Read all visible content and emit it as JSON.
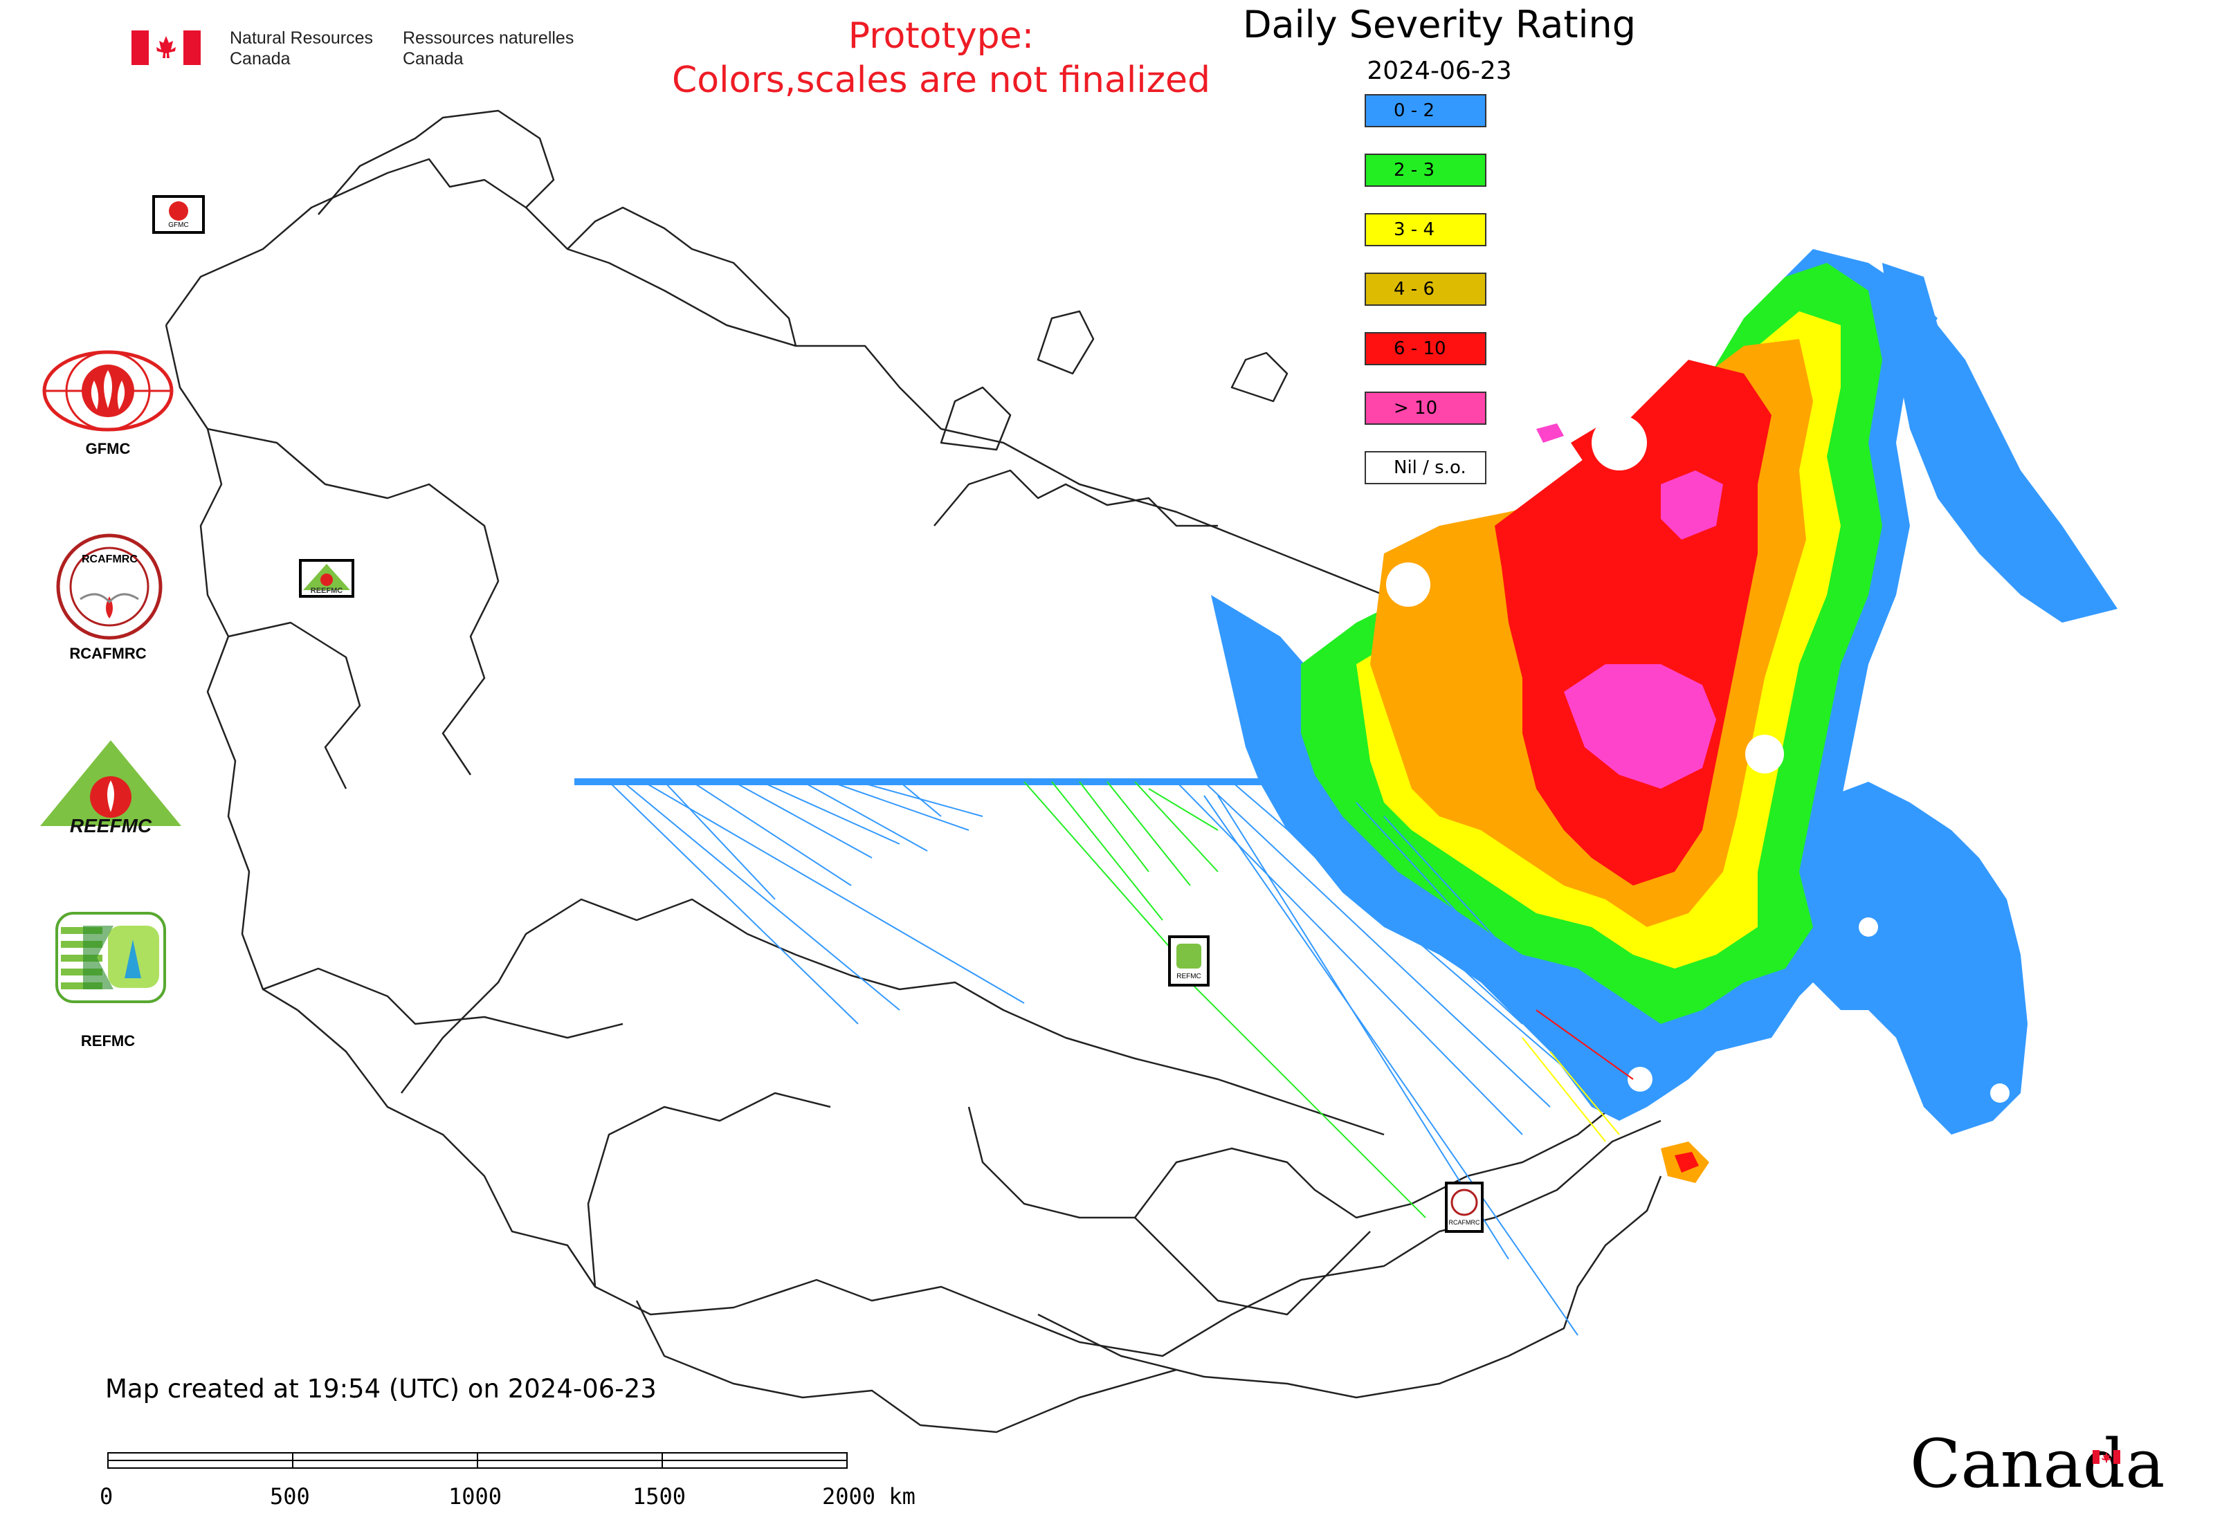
{
  "header": {
    "agency_en_line1": "Natural Resources",
    "agency_en_line2": "Canada",
    "agency_fr_line1": "Ressources naturelles",
    "agency_fr_line2": "Canada",
    "prototype_line1": "Prototype:",
    "prototype_line2": "Colors,scales are not finalized"
  },
  "map": {
    "title": "Daily Severity Rating",
    "date": "2024-06-23"
  },
  "legend": {
    "items": [
      {
        "label": "0 - 2",
        "color": "#3399ff"
      },
      {
        "label": "2 - 3",
        "color": "#22ee22"
      },
      {
        "label": "3 - 4",
        "color": "#ffff00"
      },
      {
        "label": "4 - 6",
        "color": "#ddbb00"
      },
      {
        "label": "6 - 10",
        "color": "#ff1111"
      },
      {
        "label": "> 10",
        "color": "#ff44aa"
      },
      {
        "label": "Nil / s.o.",
        "color": "#ffffff"
      }
    ]
  },
  "logos": {
    "gfmc": "GFMC",
    "rcafmrc": "RCAFMRC",
    "reefmc": "REEFMC",
    "refmc": "REFMC",
    "rcafmrc_seal_text": "RCAFMRC",
    "reefmc_text": "REEFMC"
  },
  "map_icons": {
    "gfmc": "GFMC",
    "reefmc": "REEFMC",
    "refmc": "REFMC",
    "rcafmrc": "RCAFMRC"
  },
  "footer": {
    "created": "Map created at 19:54 (UTC) on 2024-06-23"
  },
  "scalebar": {
    "ticks": [
      "0",
      "500",
      "1000",
      "1500",
      "2000 km"
    ]
  },
  "wordmark": "Canada",
  "colors": {
    "prototype_text": "#ee1c25",
    "flag_red": "#e8112d"
  }
}
